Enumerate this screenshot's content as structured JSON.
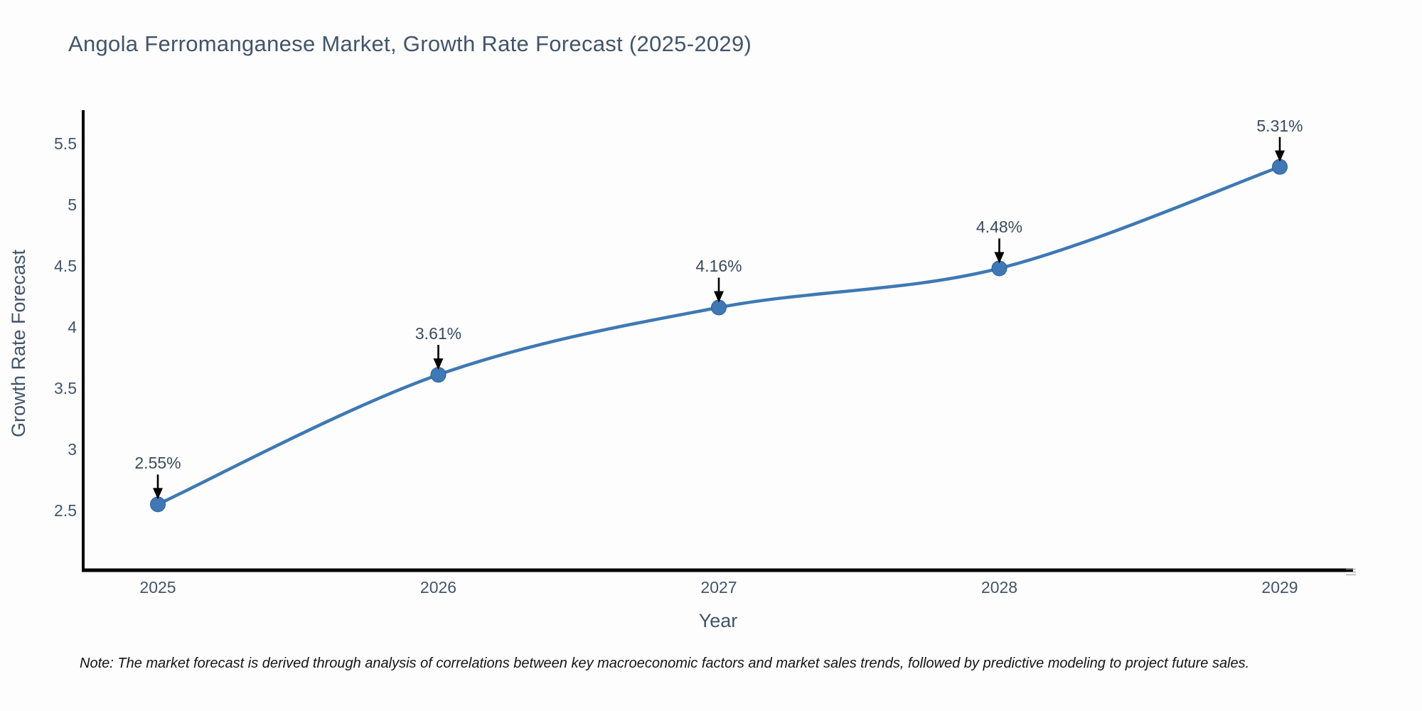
{
  "page": {
    "background": "#fdfdfd"
  },
  "chart_data": {
    "type": "line",
    "line_shape": "spline",
    "title": "Angola Ferromanganese Market, Growth Rate Forecast (2025-2029)",
    "xlabel": "Year",
    "ylabel": "Growth Rate Forecast",
    "categories": [
      "2025",
      "2026",
      "2027",
      "2028",
      "2029"
    ],
    "series": [
      {
        "name": "Growth Rate Forecast",
        "values": [
          2.55,
          3.61,
          4.16,
          4.48,
          5.31
        ]
      }
    ],
    "point_labels": [
      "2.55%",
      "3.61%",
      "4.16%",
      "4.48%",
      "5.31%"
    ],
    "ytick_labels": [
      "2.5",
      "3",
      "3.5",
      "4",
      "4.5",
      "5",
      "5.5"
    ],
    "ytick_values": [
      2.5,
      3,
      3.5,
      4,
      4.5,
      5,
      5.5
    ],
    "ylim": [
      2.01,
      5.77
    ],
    "grid": false,
    "legend": false,
    "colors": {
      "line": "#3f78b4",
      "marker": "#3f78b4",
      "marker_edge": "#2e5f94",
      "axis_spine": "#000000",
      "arrow": "#000000",
      "title_text": "#42546b",
      "tick_text": "#42546b",
      "annotation_text": "#3b4a5f",
      "note_text": "#141414"
    },
    "note": "Note: The market forecast is derived through analysis of correlations between key macroeconomic factors and market sales trends, followed by predictive modeling to project future sales."
  }
}
